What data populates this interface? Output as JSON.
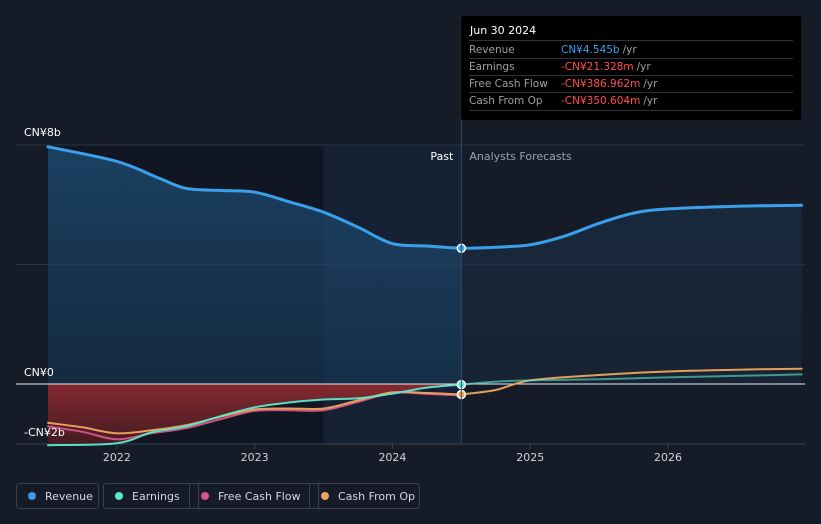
{
  "tooltip": {
    "date": "Jun 30 2024",
    "rows": [
      {
        "label": "Revenue",
        "value": "CN¥4.545b",
        "unit": "/yr",
        "color": "#3ba0ec"
      },
      {
        "label": "Earnings",
        "value": "-CN¥21.328m",
        "unit": "/yr",
        "color": "#ff4d4d"
      },
      {
        "label": "Free Cash Flow",
        "value": "-CN¥386.962m",
        "unit": "/yr",
        "color": "#ff4d4d"
      },
      {
        "label": "Cash From Op",
        "value": "-CN¥350.604m",
        "unit": "/yr",
        "color": "#ff4d4d"
      }
    ]
  },
  "labels": {
    "past": "Past",
    "forecast": "Analysts Forecasts"
  },
  "legend": [
    {
      "label": "Revenue",
      "color": "#3ba0ec"
    },
    {
      "label": "Earnings",
      "color": "#5ce8d0"
    },
    {
      "label": "Free Cash Flow",
      "color": "#d8568b"
    },
    {
      "label": "Cash From Op",
      "color": "#f1a55c"
    }
  ],
  "chart_data": {
    "type": "line",
    "title": "",
    "xlabel": "",
    "ylabel": "",
    "y_tick_labels": [
      "CN¥8b",
      "CN¥0",
      "-CN¥2b"
    ],
    "x_tick_labels": [
      "2022",
      "2023",
      "2024",
      "2025",
      "2026"
    ],
    "x_range": [
      2021.5,
      2026.97
    ],
    "ylim": [
      -2,
      8
    ],
    "past_end_x": 2024.5,
    "highlight_band": [
      2023.5,
      2024.5
    ],
    "legend_position": "bottom",
    "series": [
      {
        "name": "Revenue",
        "color": "#3ba0ec",
        "points": [
          [
            2021.5,
            7.94
          ],
          [
            2022.0,
            7.45
          ],
          [
            2022.3,
            6.9
          ],
          [
            2022.5,
            6.55
          ],
          [
            2022.75,
            6.48
          ],
          [
            2023.0,
            6.42
          ],
          [
            2023.25,
            6.1
          ],
          [
            2023.5,
            5.75
          ],
          [
            2023.75,
            5.25
          ],
          [
            2024.0,
            4.7
          ],
          [
            2024.25,
            4.62
          ],
          [
            2024.5,
            4.545
          ],
          [
            2024.75,
            4.58
          ],
          [
            2025.0,
            4.66
          ],
          [
            2025.25,
            4.95
          ],
          [
            2025.5,
            5.38
          ],
          [
            2025.75,
            5.72
          ],
          [
            2026.0,
            5.86
          ],
          [
            2026.5,
            5.95
          ],
          [
            2026.97,
            5.98
          ]
        ]
      },
      {
        "name": "Earnings",
        "color": "#5ce8d0",
        "points": [
          [
            2021.5,
            -2.05
          ],
          [
            2022.0,
            -1.98
          ],
          [
            2022.25,
            -1.62
          ],
          [
            2022.5,
            -1.42
          ],
          [
            2022.75,
            -1.08
          ],
          [
            2023.0,
            -0.78
          ],
          [
            2023.25,
            -0.62
          ],
          [
            2023.5,
            -0.52
          ],
          [
            2023.75,
            -0.48
          ],
          [
            2024.0,
            -0.32
          ],
          [
            2024.25,
            -0.12
          ],
          [
            2024.5,
            -0.021
          ],
          [
            2024.75,
            0.08
          ],
          [
            2025.0,
            0.12
          ],
          [
            2025.5,
            0.16
          ],
          [
            2026.0,
            0.22
          ],
          [
            2026.5,
            0.27
          ],
          [
            2026.97,
            0.32
          ]
        ]
      },
      {
        "name": "Free Cash Flow",
        "color": "#d8568b",
        "points": [
          [
            2021.5,
            -1.42
          ],
          [
            2021.75,
            -1.6
          ],
          [
            2022.0,
            -1.85
          ],
          [
            2022.25,
            -1.65
          ],
          [
            2022.5,
            -1.48
          ],
          [
            2022.75,
            -1.18
          ],
          [
            2023.0,
            -0.9
          ],
          [
            2023.25,
            -0.88
          ],
          [
            2023.5,
            -0.88
          ],
          [
            2023.75,
            -0.6
          ],
          [
            2024.0,
            -0.3
          ],
          [
            2024.25,
            -0.33
          ],
          [
            2024.5,
            -0.387
          ]
        ]
      },
      {
        "name": "Cash From Op",
        "color": "#f1a55c",
        "points": [
          [
            2021.5,
            -1.3
          ],
          [
            2021.75,
            -1.45
          ],
          [
            2022.0,
            -1.65
          ],
          [
            2022.25,
            -1.55
          ],
          [
            2022.5,
            -1.38
          ],
          [
            2022.75,
            -1.1
          ],
          [
            2023.0,
            -0.85
          ],
          [
            2023.25,
            -0.82
          ],
          [
            2023.5,
            -0.82
          ],
          [
            2023.75,
            -0.55
          ],
          [
            2024.0,
            -0.28
          ],
          [
            2024.25,
            -0.3
          ],
          [
            2024.5,
            -0.351
          ],
          [
            2024.75,
            -0.2
          ],
          [
            2025.0,
            0.12
          ],
          [
            2025.5,
            0.3
          ],
          [
            2026.0,
            0.42
          ],
          [
            2026.5,
            0.48
          ],
          [
            2026.97,
            0.51
          ]
        ]
      }
    ]
  }
}
